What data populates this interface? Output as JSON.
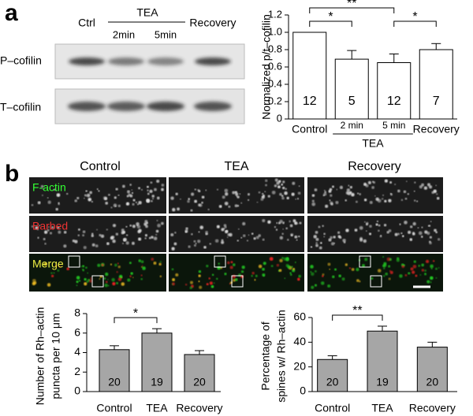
{
  "panel_a": {
    "label": "a",
    "blot_columns": [
      "Ctrl",
      "2min",
      "5min",
      "Recovery"
    ],
    "blot_group": "TEA",
    "blot_rows": [
      "P–cofilin",
      "T–cofilin"
    ]
  },
  "panel_b": {
    "label": "b",
    "columns": [
      "Control",
      "TEA",
      "Recovery"
    ],
    "rows": [
      "F-actin",
      "Barbed",
      "Merge"
    ]
  },
  "chart_data": [
    {
      "type": "bar",
      "ylabel": [
        "Normalized p/t–cofilin"
      ],
      "categories": [
        "Control",
        "2 min",
        "5 min",
        "Recovery"
      ],
      "groups": [
        {
          "label": "TEA",
          "categories": [
            "2 min",
            "5 min"
          ]
        }
      ],
      "values": [
        1.0,
        0.69,
        0.65,
        0.8
      ],
      "errors": [
        null,
        0.1,
        0.1,
        0.07
      ],
      "n": [
        12,
        5,
        12,
        7
      ],
      "color": "#ffffff",
      "ylim": [
        0,
        1.2
      ],
      "yticks": [
        0,
        0.2,
        0.4,
        0.6,
        0.8,
        {
          "value": 1,
          "label": "1.0"
        },
        1.2
      ],
      "significance": [
        {
          "pair": [
            "Control",
            "2 min"
          ],
          "label": "*"
        },
        {
          "pair": [
            "Control",
            "5 min"
          ],
          "label": "**"
        },
        {
          "pair": [
            "5 min",
            "Recovery"
          ],
          "label": "*"
        }
      ]
    },
    {
      "type": "bar",
      "ylabel": [
        "Number of Rh–actin",
        "puncta per 10 μm"
      ],
      "categories": [
        "Control",
        "TEA",
        "Recovery"
      ],
      "values": [
        4.3,
        6.0,
        3.8
      ],
      "errors": [
        0.4,
        0.45,
        0.4
      ],
      "n": [
        20,
        19,
        20
      ],
      "color": "#a6a6a6",
      "ylim": [
        0,
        8
      ],
      "yticks": [
        0,
        2,
        4,
        6,
        8
      ],
      "significance": [
        {
          "pair": [
            "Control",
            "TEA"
          ],
          "label": "*"
        }
      ]
    },
    {
      "type": "bar",
      "ylabel": [
        "Percentage of",
        "spines w/ Rh–actin"
      ],
      "categories": [
        "Control",
        "TEA",
        "Recovery"
      ],
      "values": [
        26,
        49,
        36
      ],
      "errors": [
        3,
        4,
        4
      ],
      "n": [
        20,
        19,
        20
      ],
      "color": "#a6a6a6",
      "ylim": [
        0,
        60
      ],
      "yticks": [
        0,
        20,
        40,
        60
      ],
      "significance": [
        {
          "pair": [
            "Control",
            "TEA"
          ],
          "label": "**"
        }
      ]
    }
  ]
}
